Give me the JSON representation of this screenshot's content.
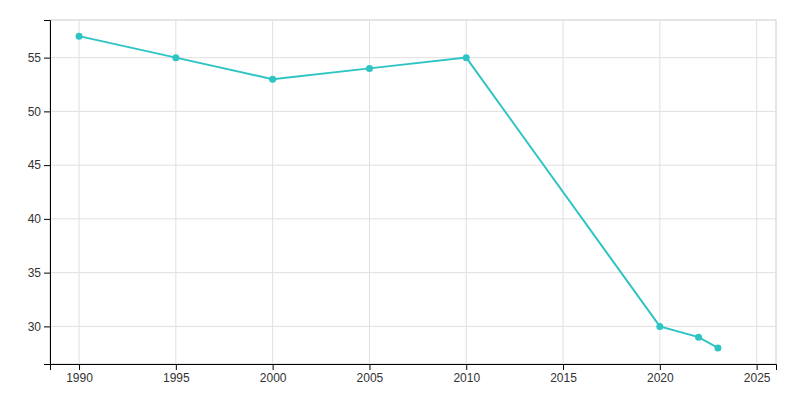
{
  "chart_data": {
    "type": "line",
    "x": [
      1990,
      1995,
      2000,
      2005,
      2010,
      2020,
      2022,
      2023
    ],
    "values": [
      57,
      55,
      53,
      54,
      55,
      30,
      29,
      28
    ],
    "color": "#2ec4c4",
    "marker": "circle",
    "xlim": [
      1988.5,
      2026
    ],
    "ylim": [
      26.5,
      58.5
    ],
    "xticks": [
      1990,
      1995,
      2000,
      2005,
      2010,
      2015,
      2020,
      2025
    ],
    "yticks": [
      30,
      35,
      40,
      45,
      50,
      55
    ],
    "grid": true
  }
}
